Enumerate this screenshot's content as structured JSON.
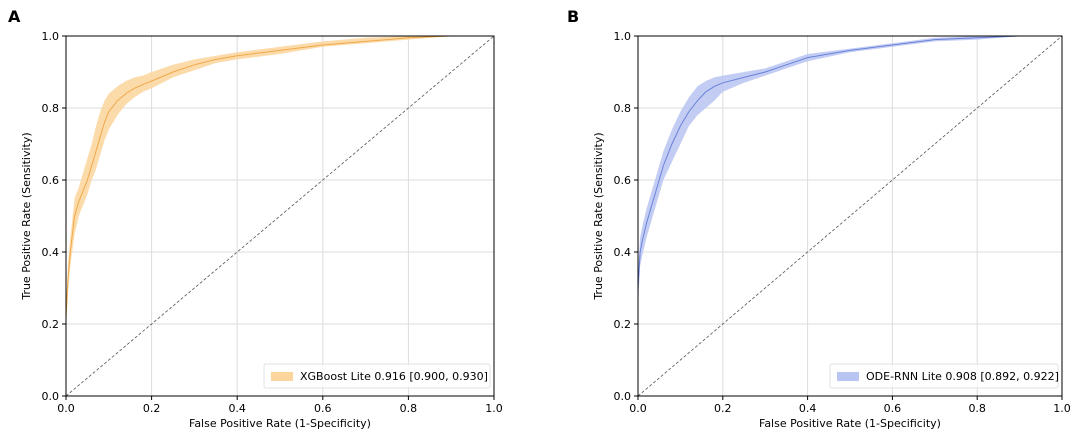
{
  "chart_data": [
    {
      "type": "line",
      "panel_label": "A",
      "xlabel": "False Positive Rate (1-Specificity)",
      "ylabel": "True Positive Rate (Sensitivity)",
      "xlim": [
        0.0,
        1.0
      ],
      "ylim": [
        0.0,
        1.0
      ],
      "xticks": [
        "0.0",
        "0.2",
        "0.4",
        "0.6",
        "0.8",
        "1.0"
      ],
      "yticks": [
        "0.0",
        "0.2",
        "0.4",
        "0.6",
        "0.8",
        "1.0"
      ],
      "grid": true,
      "legend_position": "bottom-right",
      "legend_label": "XGBoost Lite 0.916 [0.900, 0.930]",
      "colors": {
        "line": "#f0a84a",
        "band": "#fbd59c",
        "diagonal": "#555555"
      },
      "series": [
        {
          "name": "XGBoost Lite",
          "x": [
            0.0,
            0.0,
            0.005,
            0.01,
            0.02,
            0.03,
            0.04,
            0.05,
            0.06,
            0.07,
            0.08,
            0.09,
            0.1,
            0.12,
            0.14,
            0.16,
            0.18,
            0.2,
            0.25,
            0.3,
            0.35,
            0.4,
            0.5,
            0.6,
            0.7,
            0.8,
            0.9,
            1.0
          ],
          "y": [
            0.0,
            0.22,
            0.33,
            0.4,
            0.5,
            0.54,
            0.57,
            0.6,
            0.64,
            0.68,
            0.72,
            0.76,
            0.79,
            0.82,
            0.84,
            0.855,
            0.865,
            0.875,
            0.9,
            0.92,
            0.935,
            0.945,
            0.96,
            0.975,
            0.985,
            0.995,
            1.0,
            1.0
          ],
          "lower": [
            0.0,
            0.19,
            0.29,
            0.36,
            0.45,
            0.5,
            0.53,
            0.56,
            0.6,
            0.63,
            0.67,
            0.71,
            0.74,
            0.78,
            0.81,
            0.83,
            0.845,
            0.855,
            0.885,
            0.905,
            0.925,
            0.935,
            0.95,
            0.97,
            0.98,
            0.99,
            1.0,
            1.0
          ],
          "upper": [
            0.0,
            0.25,
            0.37,
            0.44,
            0.55,
            0.58,
            0.62,
            0.66,
            0.7,
            0.75,
            0.79,
            0.82,
            0.84,
            0.86,
            0.875,
            0.885,
            0.89,
            0.9,
            0.92,
            0.935,
            0.945,
            0.955,
            0.97,
            0.985,
            0.995,
            1.0,
            1.0,
            1.0
          ]
        }
      ]
    },
    {
      "type": "line",
      "panel_label": "B",
      "xlabel": "False Positive Rate (1-Specificity)",
      "ylabel": "True Positive Rate (Sensitivity)",
      "xlim": [
        0.0,
        1.0
      ],
      "ylim": [
        0.0,
        1.0
      ],
      "xticks": [
        "0.0",
        "0.2",
        "0.4",
        "0.6",
        "0.8",
        "1.0"
      ],
      "yticks": [
        "0.0",
        "0.2",
        "0.4",
        "0.6",
        "0.8",
        "1.0"
      ],
      "grid": true,
      "legend_position": "bottom-right",
      "legend_label": "ODE-RNN Lite 0.908 [0.892, 0.922]",
      "colors": {
        "line": "#6a82d8",
        "band": "#b8c4f2",
        "diagonal": "#555555"
      },
      "series": [
        {
          "name": "ODE-RNN Lite",
          "x": [
            0.0,
            0.0,
            0.005,
            0.01,
            0.02,
            0.03,
            0.04,
            0.05,
            0.06,
            0.08,
            0.1,
            0.12,
            0.14,
            0.16,
            0.18,
            0.2,
            0.25,
            0.3,
            0.35,
            0.4,
            0.5,
            0.6,
            0.7,
            0.8,
            0.9,
            1.0
          ],
          "y": [
            0.0,
            0.3,
            0.4,
            0.43,
            0.48,
            0.52,
            0.56,
            0.6,
            0.64,
            0.7,
            0.75,
            0.79,
            0.82,
            0.845,
            0.86,
            0.87,
            0.885,
            0.9,
            0.92,
            0.94,
            0.96,
            0.975,
            0.99,
            0.995,
            1.0,
            1.0
          ],
          "lower": [
            0.0,
            0.25,
            0.36,
            0.39,
            0.44,
            0.48,
            0.52,
            0.56,
            0.6,
            0.65,
            0.7,
            0.75,
            0.78,
            0.8,
            0.82,
            0.845,
            0.87,
            0.89,
            0.91,
            0.93,
            0.955,
            0.97,
            0.985,
            0.99,
            1.0,
            1.0
          ],
          "upper": [
            0.0,
            0.34,
            0.44,
            0.47,
            0.52,
            0.56,
            0.6,
            0.64,
            0.68,
            0.74,
            0.79,
            0.83,
            0.86,
            0.875,
            0.885,
            0.89,
            0.9,
            0.91,
            0.93,
            0.95,
            0.965,
            0.98,
            0.995,
            1.0,
            1.0,
            1.0
          ]
        }
      ]
    }
  ]
}
